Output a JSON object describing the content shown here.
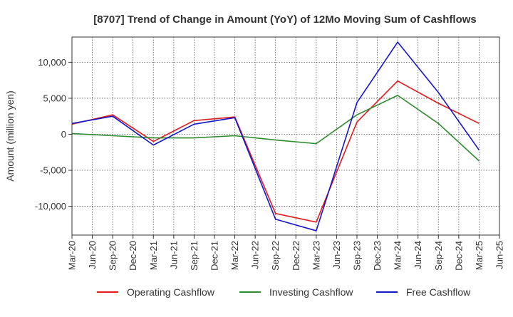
{
  "chart_data": {
    "type": "line",
    "title": "[8707]  Trend of Change in Amount (YoY) of 12Mo Moving Sum of Cashflows",
    "xlabel": "",
    "ylabel": "Amount (million yen)",
    "categories": [
      "Mar-20",
      "Jun-20",
      "Sep-20",
      "Dec-20",
      "Mar-21",
      "Jun-21",
      "Sep-21",
      "Dec-21",
      "Mar-22",
      "Jun-22",
      "Sep-22",
      "Dec-22",
      "Mar-23",
      "Jun-23",
      "Sep-23",
      "Dec-23",
      "Mar-24",
      "Jun-24",
      "Sep-24",
      "Dec-24",
      "Mar-25",
      "Jun-25"
    ],
    "ylim": [
      -14000,
      13500
    ],
    "yticks": [
      -10000,
      -5000,
      0,
      5000,
      10000
    ],
    "ytick_labels": [
      "-10,000",
      "-5,000",
      "0",
      "5,000",
      "10,000"
    ],
    "grid": true,
    "legend_position": "bottom",
    "series": [
      {
        "name": "Operating Cashflow",
        "color": "#e41a1c",
        "values": [
          1400,
          null,
          2700,
          null,
          -1000,
          null,
          1900,
          null,
          2400,
          null,
          -11000,
          null,
          -12200,
          null,
          1700,
          null,
          7400,
          null,
          4300,
          null,
          1500,
          null
        ]
      },
      {
        "name": "Investing Cashflow",
        "color": "#2e8b2e",
        "values": [
          100,
          null,
          -200,
          null,
          -500,
          null,
          -500,
          null,
          -200,
          null,
          -800,
          null,
          -1300,
          null,
          2700,
          null,
          5400,
          null,
          1500,
          null,
          -3700,
          null
        ]
      },
      {
        "name": "Free Cashflow",
        "color": "#1515cc",
        "values": [
          1500,
          null,
          2500,
          null,
          -1500,
          null,
          1400,
          null,
          2300,
          null,
          -11800,
          null,
          -13400,
          null,
          4400,
          null,
          12800,
          null,
          5800,
          null,
          -2200,
          null
        ]
      }
    ]
  }
}
